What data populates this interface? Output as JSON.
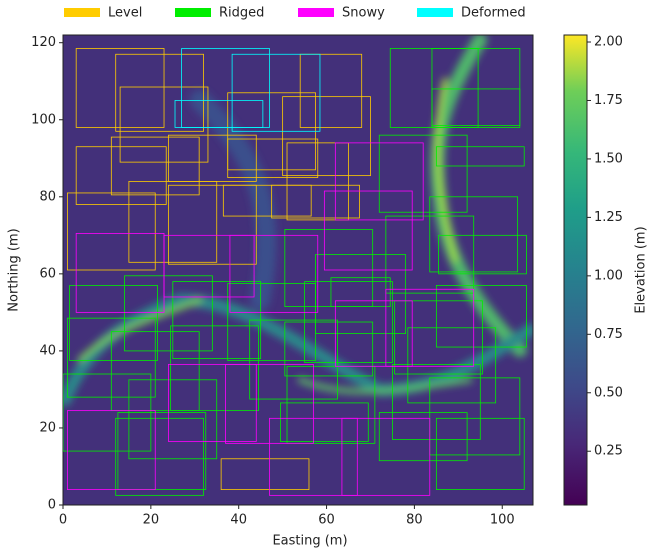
{
  "chart_data": {
    "type": "heatmap",
    "xlabel": "Easting (m)",
    "ylabel": "Northing (m)",
    "colorbar_label": "Elevation (m)",
    "xlim": [
      0,
      107
    ],
    "ylim": [
      0,
      122
    ],
    "xticks": [
      0,
      20,
      40,
      60,
      80,
      100
    ],
    "yticks": [
      0,
      20,
      40,
      60,
      80,
      100,
      120
    ],
    "clim": [
      0.02,
      2.03
    ],
    "cticks": [
      0.25,
      {
        "value": 0.5,
        "label": "0.50"
      },
      0.75,
      {
        "value": 1.0,
        "label": "1.00"
      },
      1.25,
      {
        "value": 1.5,
        "label": "1.50"
      },
      1.75,
      {
        "value": 2.0,
        "label": "2.00"
      }
    ],
    "colormap": "viridis",
    "legend": "top",
    "series": [
      {
        "name": "Level",
        "color": "#ffcc00",
        "boxes": [
          [
            3,
            98,
            23,
            118.5
          ],
          [
            12,
            97,
            32,
            117
          ],
          [
            13,
            89,
            33,
            108.5
          ],
          [
            3,
            78,
            23.5,
            93
          ],
          [
            11,
            80.5,
            31,
            95.5
          ],
          [
            24,
            84,
            44,
            96
          ],
          [
            37.5,
            85,
            58,
            95
          ],
          [
            50,
            85.5,
            70,
            106
          ],
          [
            37.5,
            87,
            57.5,
            107
          ],
          [
            54,
            98,
            68,
            117
          ],
          [
            1,
            61,
            21,
            81
          ],
          [
            15,
            63,
            35,
            84
          ],
          [
            24,
            62.5,
            44,
            83
          ],
          [
            36.5,
            75,
            56.5,
            83
          ],
          [
            47.5,
            74.5,
            67.5,
            83
          ],
          [
            51,
            74,
            65,
            94
          ],
          [
            36,
            4,
            56,
            12
          ]
        ]
      },
      {
        "name": "Ridged",
        "color": "#00ee00",
        "boxes": [
          [
            74.5,
            98,
            94.5,
            118.5
          ],
          [
            84,
            98,
            104,
            118.5
          ],
          [
            84,
            98.5,
            104,
            108
          ],
          [
            72,
            76,
            92,
            96
          ],
          [
            85,
            88,
            105,
            93
          ],
          [
            83.5,
            60.5,
            103.5,
            80
          ],
          [
            85.5,
            60,
            105.5,
            70
          ],
          [
            73.5,
            55,
            93.5,
            75
          ],
          [
            85,
            41,
            105.5,
            57
          ],
          [
            78.5,
            26.5,
            98.5,
            46
          ],
          [
            83.5,
            13,
            104,
            33
          ],
          [
            75,
            17,
            95,
            36.5
          ],
          [
            85,
            4,
            105,
            22.5
          ],
          [
            72,
            11.5,
            92,
            24
          ],
          [
            57.5,
            44.5,
            78,
            65
          ],
          [
            55,
            37,
            75,
            58
          ],
          [
            50.5,
            51.5,
            70.5,
            71.5
          ],
          [
            61,
            51.5,
            74.5,
            59
          ],
          [
            50.5,
            33.5,
            70.5,
            47.5
          ],
          [
            51,
            16,
            71,
            36
          ],
          [
            49.5,
            16.5,
            69.5,
            26.5
          ],
          [
            37.5,
            37.5,
            57.5,
            57.5
          ],
          [
            25,
            38,
            45,
            58
          ],
          [
            14,
            40,
            34,
            59.5
          ],
          [
            1.5,
            37.5,
            21.5,
            57
          ],
          [
            1,
            28,
            21,
            48.5
          ],
          [
            11,
            24.5,
            31,
            45
          ],
          [
            15,
            12,
            35,
            32.5
          ],
          [
            12,
            2.5,
            32,
            22.5
          ],
          [
            0,
            14,
            20,
            34
          ],
          [
            24.5,
            24.5,
            44.5,
            46.5
          ],
          [
            12.5,
            4,
            32.5,
            24
          ],
          [
            42.5,
            27.5,
            62.5,
            48
          ],
          [
            75.5,
            34,
            95.5,
            53
          ]
        ]
      },
      {
        "name": "Snowy",
        "color": "#ff00ff",
        "boxes": [
          [
            3,
            50,
            23,
            70.5
          ],
          [
            23,
            54,
            43.5,
            70
          ],
          [
            38,
            50,
            58,
            70
          ],
          [
            59.5,
            61,
            79.5,
            81.5
          ],
          [
            62,
            74,
            82,
            94
          ],
          [
            73.5,
            36,
            93.5,
            56
          ],
          [
            24,
            16.5,
            44,
            36.5
          ],
          [
            1,
            4,
            21,
            24.5
          ],
          [
            47,
            2.5,
            67,
            22.5
          ],
          [
            63.5,
            2.5,
            83.5,
            22.5
          ],
          [
            37,
            16,
            57,
            36.5
          ],
          [
            62,
            36,
            79.5,
            53
          ]
        ]
      },
      {
        "name": "Deformed",
        "color": "#00ffff",
        "boxes": [
          [
            27,
            98,
            47,
            118.5
          ],
          [
            38.5,
            97,
            58.5,
            117
          ],
          [
            25.5,
            98,
            45.5,
            105
          ]
        ]
      }
    ]
  }
}
